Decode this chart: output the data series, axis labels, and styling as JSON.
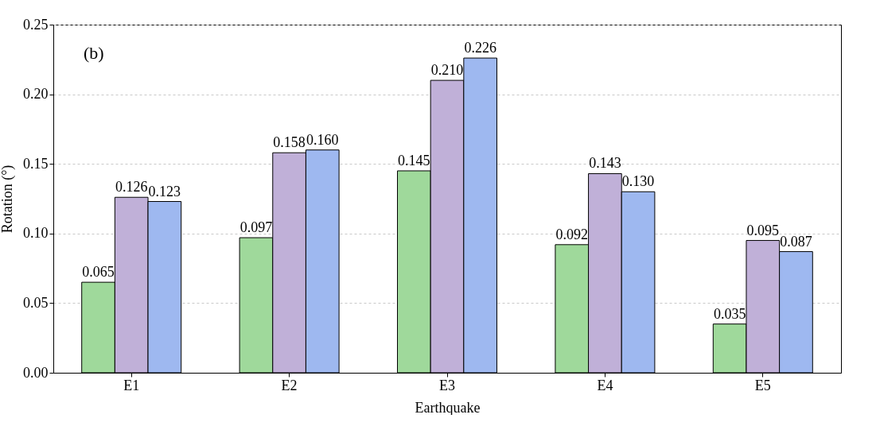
{
  "chart_data": {
    "type": "bar",
    "xlabel": "Earthquake",
    "ylabel": "Rotation (°)",
    "categories": [
      "E1",
      "E2",
      "E3",
      "E4",
      "E5"
    ],
    "series": [
      {
        "color": "#9fd99b",
        "values": [
          0.065,
          0.097,
          0.145,
          0.092,
          0.035
        ],
        "value_labels": [
          "0.065",
          "0.097",
          "0.145",
          "0.092",
          "0.035"
        ]
      },
      {
        "color": "#c0b0d8",
        "values": [
          0.126,
          0.158,
          0.21,
          0.143,
          0.095
        ],
        "value_labels": [
          "0.126",
          "0.158",
          "0.210",
          "0.143",
          "0.095"
        ]
      },
      {
        "color": "#9eb8f0",
        "values": [
          0.123,
          0.16,
          0.226,
          0.13,
          0.087
        ],
        "value_labels": [
          "0.123",
          "0.160",
          "0.226",
          "0.130",
          "0.087"
        ]
      }
    ],
    "ylim": [
      0,
      0.25
    ],
    "yticks": [
      {
        "value": 0,
        "label": "0.00"
      },
      {
        "value": 0.05,
        "label": "0.05"
      },
      {
        "value": 0.1,
        "label": "0.10"
      },
      {
        "value": 0.15,
        "label": "0.15"
      },
      {
        "value": 0.2,
        "label": "0.20"
      },
      {
        "value": 0.25,
        "label": "0.25"
      }
    ],
    "grid": "y",
    "annotations": [
      "(b)"
    ]
  }
}
